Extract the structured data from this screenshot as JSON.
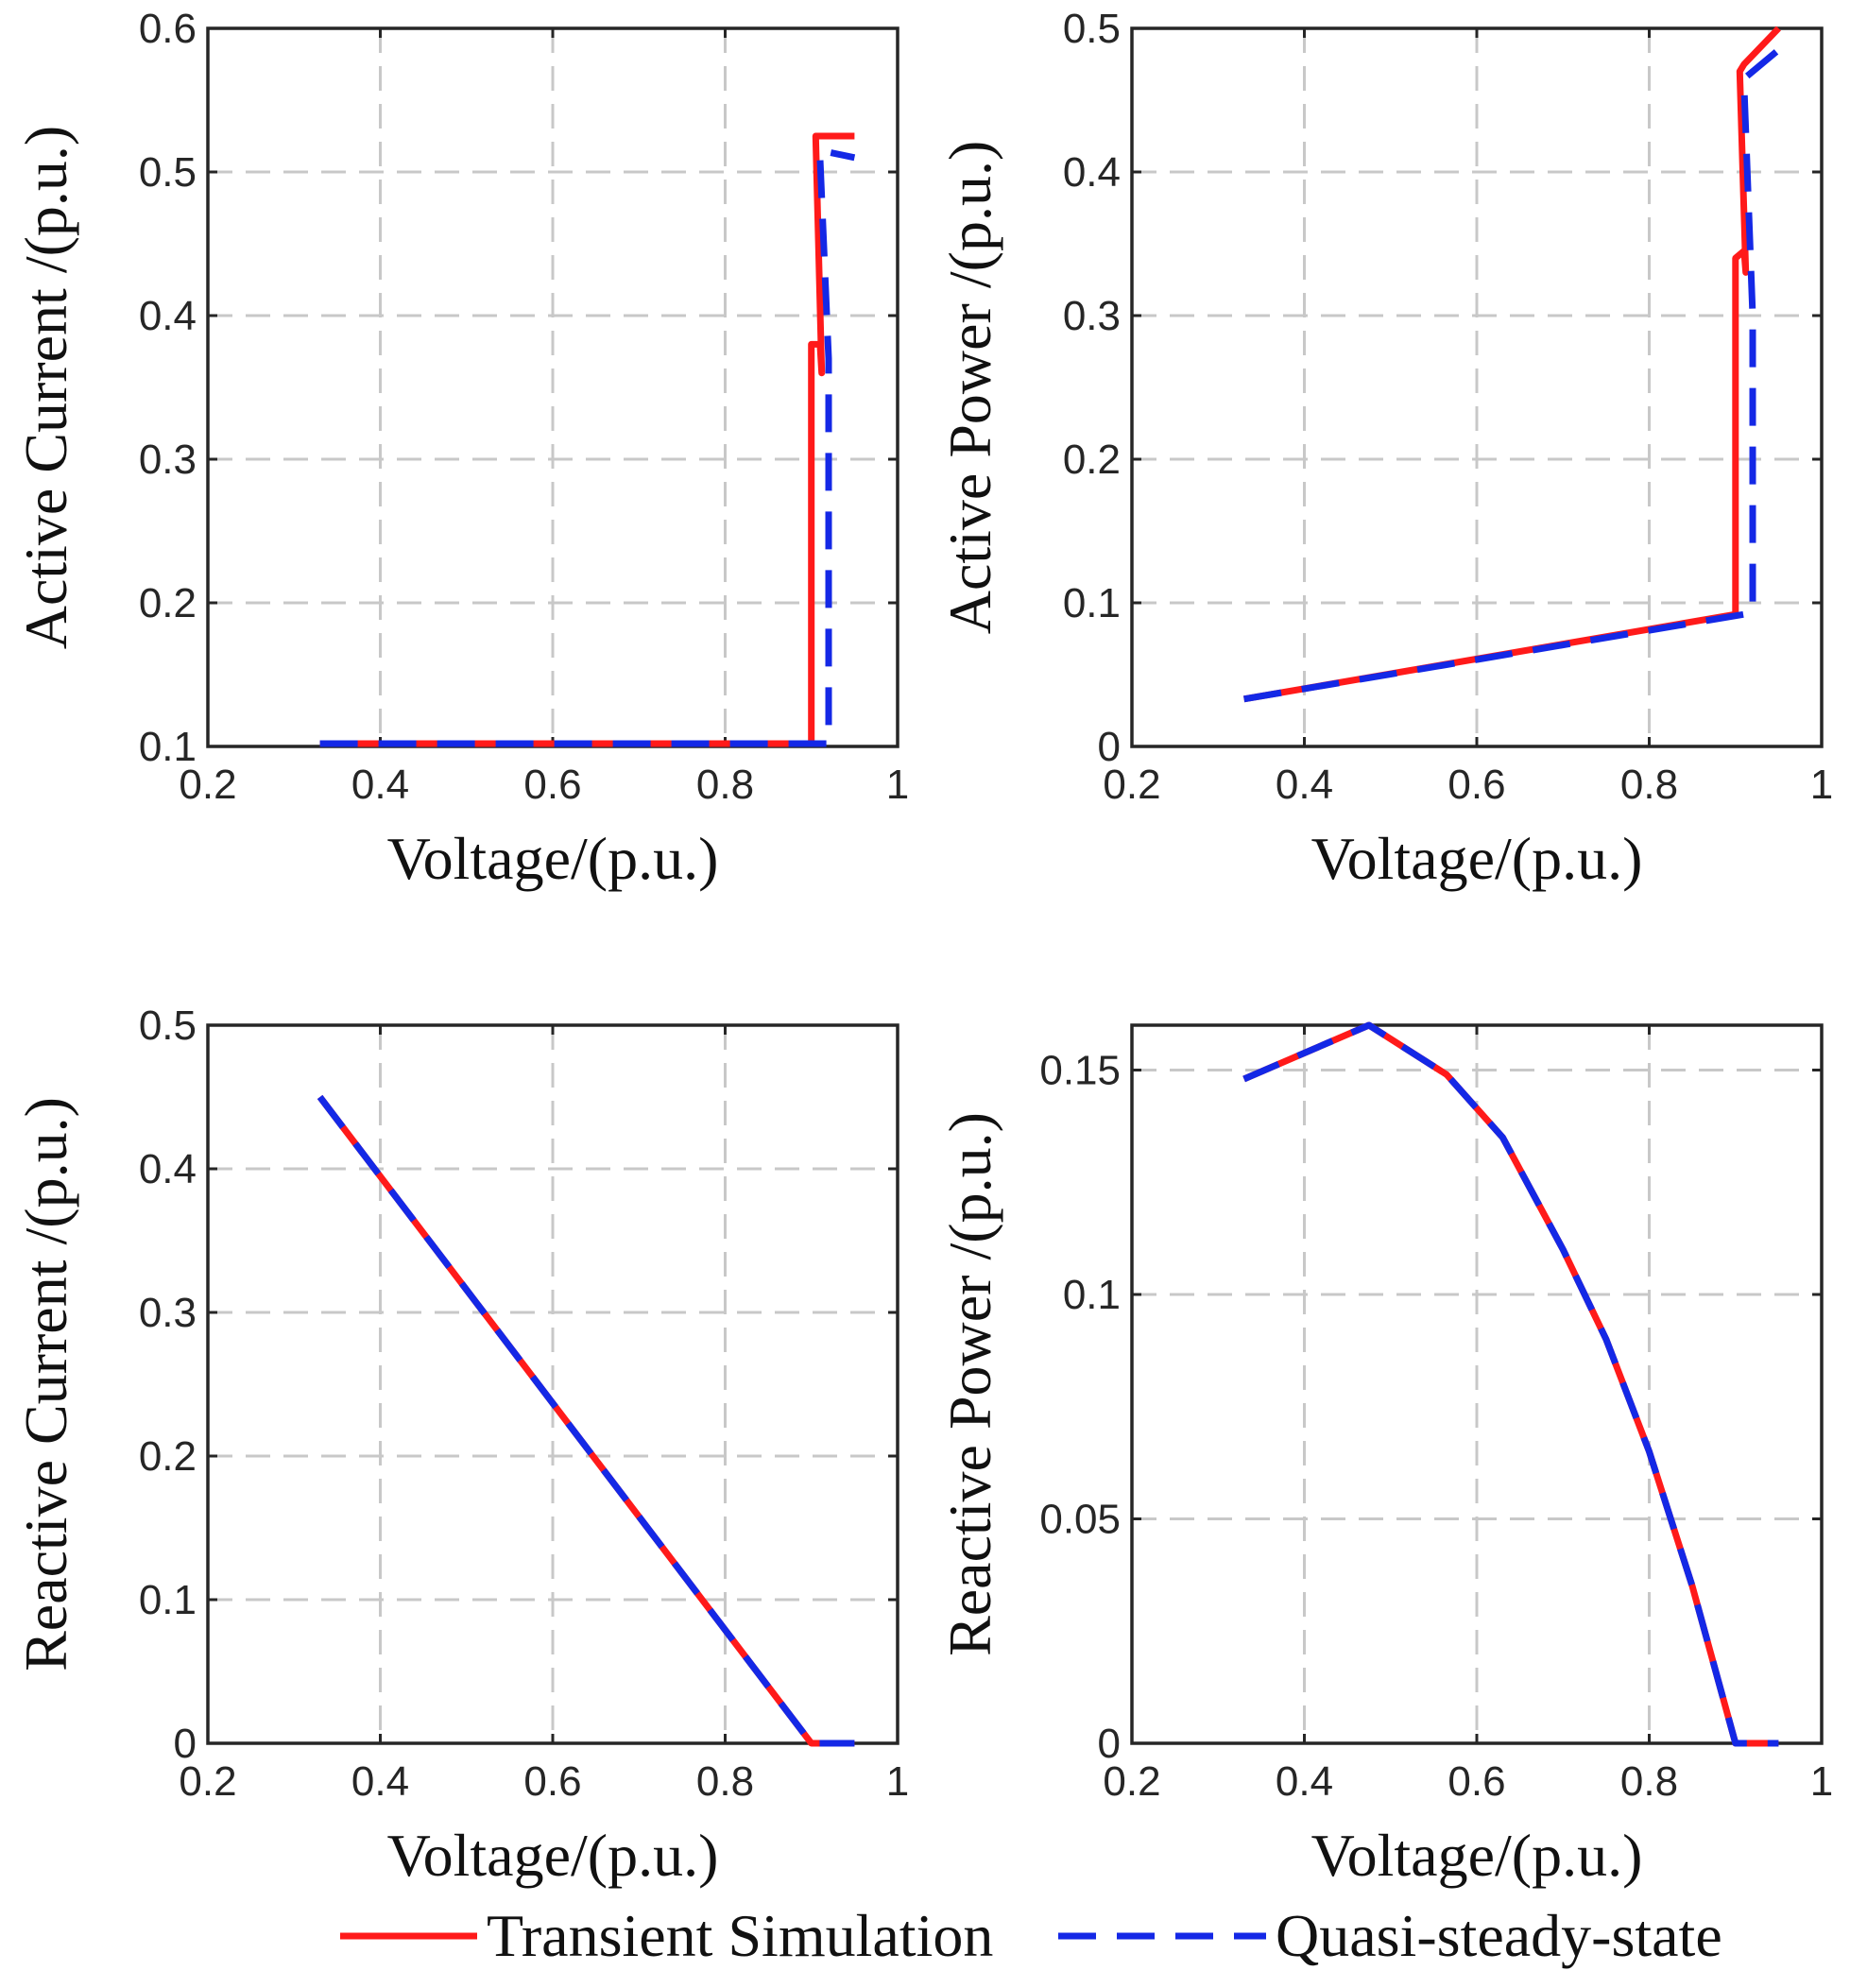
{
  "colors": {
    "transient": "#ff1a1a",
    "quasi": "#1428e6",
    "grid": "#c8c8c8",
    "axes": "#262626"
  },
  "legend": {
    "entries": [
      {
        "name": "Transient Simulation",
        "style": "solid",
        "color": "#ff1a1a"
      },
      {
        "name": "Quasi-steady-state",
        "style": "dashed",
        "color": "#1428e6"
      }
    ],
    "placement": "bottom-center"
  },
  "chart_data": [
    {
      "id": "active-current",
      "type": "line",
      "title": "",
      "xlabel": "Voltage/(p.u.)",
      "ylabel": "Active Current /(p.u.)",
      "xlim": [
        0.2,
        1
      ],
      "ylim": [
        0.1,
        0.6
      ],
      "xticks": [
        0.2,
        0.4,
        0.6,
        0.8,
        1
      ],
      "xtick_labels": [
        "0.2",
        "0.4",
        "0.6",
        "0.8",
        "1"
      ],
      "yticks": [
        0.1,
        0.2,
        0.3,
        0.4,
        0.5,
        0.6
      ],
      "ytick_labels": [
        "0.1",
        "0.2",
        "0.3",
        "0.4",
        "0.5",
        "0.6"
      ],
      "grid": true,
      "series": [
        {
          "name": "Transient Simulation",
          "x": [
            0.33,
            0.9,
            0.9,
            0.91,
            0.912,
            0.905,
            0.905,
            0.95
          ],
          "y": [
            0.102,
            0.102,
            0.38,
            0.38,
            0.36,
            0.525,
            0.525,
            0.525
          ]
        },
        {
          "name": "Quasi-steady-state",
          "x": [
            0.33,
            0.92,
            0.92,
            0.91,
            0.91,
            0.95
          ],
          "y": [
            0.102,
            0.102,
            0.37,
            0.51,
            0.515,
            0.51
          ]
        }
      ]
    },
    {
      "id": "active-power",
      "type": "line",
      "title": "",
      "xlabel": "Voltage/(p.u.)",
      "ylabel": "Active Power /(p.u.)",
      "xlim": [
        0.2,
        1
      ],
      "ylim": [
        0,
        0.5
      ],
      "xticks": [
        0.2,
        0.4,
        0.6,
        0.8,
        1
      ],
      "xtick_labels": [
        "0.2",
        "0.4",
        "0.6",
        "0.8",
        "1"
      ],
      "yticks": [
        0,
        0.1,
        0.2,
        0.3,
        0.4,
        0.5
      ],
      "ytick_labels": [
        "0",
        "0.1",
        "0.2",
        "0.3",
        "0.4",
        "0.5"
      ],
      "grid": true,
      "series": [
        {
          "name": "Transient Simulation",
          "x": [
            0.33,
            0.9,
            0.9,
            0.91,
            0.912,
            0.905,
            0.91,
            0.95
          ],
          "y": [
            0.033,
            0.092,
            0.34,
            0.345,
            0.33,
            0.47,
            0.475,
            0.5
          ]
        },
        {
          "name": "Quasi-steady-state",
          "x": [
            0.33,
            0.92,
            0.92,
            0.91,
            0.91,
            0.95
          ],
          "y": [
            0.033,
            0.093,
            0.3,
            0.46,
            0.465,
            0.485
          ]
        }
      ]
    },
    {
      "id": "reactive-current",
      "type": "line",
      "title": "",
      "xlabel": "Voltage/(p.u.)",
      "ylabel": "Reactive Current /(p.u.)",
      "xlim": [
        0.2,
        1
      ],
      "ylim": [
        0,
        0.5
      ],
      "xticks": [
        0.2,
        0.4,
        0.6,
        0.8,
        1
      ],
      "xtick_labels": [
        "0.2",
        "0.4",
        "0.6",
        "0.8",
        "1"
      ],
      "yticks": [
        0,
        0.1,
        0.2,
        0.3,
        0.4,
        0.5
      ],
      "ytick_labels": [
        "0",
        "0.1",
        "0.2",
        "0.3",
        "0.4",
        "0.5"
      ],
      "grid": true,
      "series": [
        {
          "name": "Transient Simulation",
          "x": [
            0.33,
            0.9,
            0.95
          ],
          "y": [
            0.45,
            0.0,
            0.0
          ]
        },
        {
          "name": "Quasi-steady-state",
          "x": [
            0.33,
            0.9,
            0.95
          ],
          "y": [
            0.45,
            0.0,
            0.0
          ]
        }
      ]
    },
    {
      "id": "reactive-power",
      "type": "line",
      "title": "",
      "xlabel": "Voltage/(p.u.)",
      "ylabel": "Reactive Power /(p.u.)",
      "xlim": [
        0.2,
        1
      ],
      "ylim": [
        0,
        0.16
      ],
      "xticks": [
        0.2,
        0.4,
        0.6,
        0.8,
        1
      ],
      "xtick_labels": [
        "0.2",
        "0.4",
        "0.6",
        "0.8",
        "1"
      ],
      "yticks": [
        0,
        0.05,
        0.1,
        0.15
      ],
      "ytick_labels": [
        "0",
        "0.05",
        "0.1",
        "0.15"
      ],
      "grid": true,
      "series": [
        {
          "name": "Transient Simulation",
          "x": [
            0.33,
            0.475,
            0.565,
            0.63,
            0.7,
            0.75,
            0.8,
            0.85,
            0.9,
            0.95
          ],
          "y": [
            0.148,
            0.16,
            0.149,
            0.135,
            0.11,
            0.09,
            0.065,
            0.035,
            0.0,
            0.0
          ]
        },
        {
          "name": "Quasi-steady-state",
          "x": [
            0.33,
            0.475,
            0.565,
            0.63,
            0.7,
            0.75,
            0.8,
            0.85,
            0.9,
            0.95
          ],
          "y": [
            0.148,
            0.16,
            0.149,
            0.135,
            0.11,
            0.09,
            0.065,
            0.035,
            0.0,
            0.0
          ]
        }
      ]
    }
  ]
}
